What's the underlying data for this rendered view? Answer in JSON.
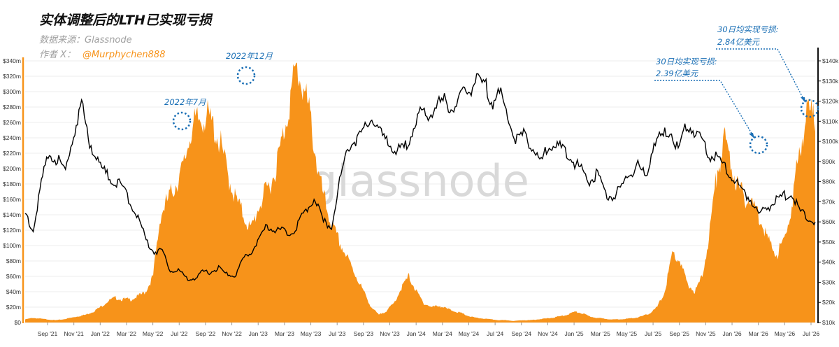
{
  "header": {
    "title": "实体调整后的LTH已实现亏损",
    "source": "数据来源：Glassnode",
    "author_prefix": "作者 X：",
    "author_handle": "@Murphychen888"
  },
  "watermark": "glassnode",
  "colors": {
    "area": "#f7931a",
    "price": "#000000",
    "annotation": "#1a6fb5",
    "grid": "#ececec"
  },
  "chart_data": {
    "type": "area",
    "x_ticks": [
      "Sep '21",
      "Nov '21",
      "Jan '22",
      "Mar '22",
      "May '22",
      "Jul '22",
      "Sep '22",
      "Nov '22",
      "Jan '23",
      "Mar '23",
      "May '23",
      "Jul '23",
      "Sep '23",
      "Nov '23",
      "Jan '24",
      "Mar '24",
      "May '24",
      "Jul '24",
      "Sep '24",
      "Nov '24",
      "Jan '25",
      "Mar '25",
      "May '25",
      "Jul '25",
      "Sep '25",
      "Nov '25",
      "Jan '26",
      "Mar '26",
      "May '26",
      "Jul '26"
    ],
    "y_left": {
      "label": "",
      "ticks": [
        "$0",
        "$20m",
        "$40m",
        "$60m",
        "$80m",
        "$100m",
        "$120m",
        "$140m",
        "$160m",
        "$180m",
        "$200m",
        "$220m",
        "$240m",
        "$260m",
        "$280m",
        "$300m",
        "$320m",
        "$340m"
      ],
      "range": [
        0,
        340
      ]
    },
    "y_right": {
      "label": "",
      "ticks": [
        "$10k",
        "$20k",
        "$30k",
        "$40k",
        "$50k",
        "$60k",
        "$70k",
        "$80k",
        "$90k",
        "$100k",
        "$110k",
        "$120k",
        "$130k",
        "$140k"
      ],
      "range": [
        10,
        140
      ]
    },
    "series": [
      {
        "kind": "area",
        "values": [
          4,
          6,
          5,
          4,
          3,
          4,
          6,
          8,
          10,
          14,
          20,
          28,
          32,
          30,
          30,
          34,
          40,
          60,
          140,
          160,
          180,
          200,
          250,
          262,
          270,
          255,
          230,
          190,
          160,
          140,
          120,
          150,
          170,
          190,
          230,
          280,
          330,
          305,
          260,
          190,
          150,
          120,
          100,
          80,
          60,
          40,
          20,
          10,
          15,
          25,
          45,
          60,
          40,
          25,
          20,
          22,
          18,
          15,
          12,
          8,
          6,
          5,
          4,
          3,
          3,
          2,
          3,
          3,
          4,
          5,
          6,
          8,
          10,
          14,
          12,
          8,
          6,
          5,
          4,
          4,
          5,
          6,
          8,
          12,
          20,
          40,
          90,
          80,
          50,
          40,
          60,
          120,
          200,
          236,
          200,
          170,
          160,
          150,
          130,
          100,
          90,
          110,
          160,
          230,
          280,
          260
        ]
      },
      {
        "kind": "line",
        "values": [
          64,
          56,
          80,
          94,
          91,
          85,
          104,
          118,
          100,
          90,
          84,
          80,
          78,
          70,
          62,
          51,
          45,
          46,
          36,
          36,
          32,
          32,
          35,
          35,
          37,
          34,
          33,
          41,
          45,
          51,
          58,
          56,
          56,
          54,
          60,
          67,
          72,
          60,
          58,
          80,
          97,
          101,
          105,
          112,
          104,
          100,
          95,
          96,
          105,
          114,
          112,
          118,
          120,
          116,
          122,
          125,
          130,
          128,
          120,
          124,
          110,
          100,
          104,
          96,
          90,
          98,
          97,
          96,
          90,
          86,
          80,
          84,
          74,
          72,
          78,
          84,
          88,
          82,
          100,
          102,
          106,
          96,
          108,
          105,
          100,
          93,
          91,
          86,
          80,
          76,
          71,
          64,
          67,
          70,
          73,
          74,
          66,
          62,
          60
        ]
      }
    ],
    "annotations": [
      {
        "label": "2022年7月"
      },
      {
        "label": "2022年12月"
      },
      {
        "label": "30日均实现亏损:",
        "value": "2.39亿美元"
      },
      {
        "label": "30日均实现亏损:",
        "value": "2.84亿美元"
      }
    ]
  }
}
